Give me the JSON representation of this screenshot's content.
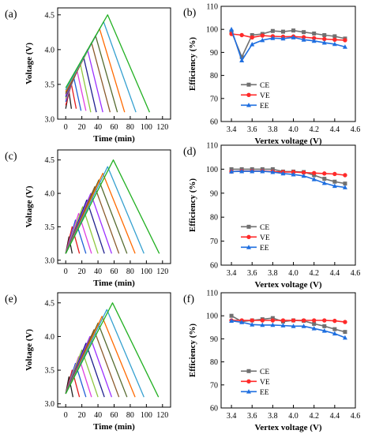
{
  "chart_data": [
    {
      "panel": "(a)",
      "type": "line",
      "xlabel": "Time (min)",
      "ylabel": "Voltage (V)",
      "xlim": [
        -10,
        130
      ],
      "ylim": [
        3.0,
        4.6
      ],
      "xticks": [
        "0",
        "20",
        "40",
        "60",
        "80",
        "100",
        "120"
      ],
      "yticks": [
        "3.0",
        "3.5",
        "4.0",
        "4.5"
      ],
      "series": [
        {
          "color": "#1f1f1f",
          "values": [
            [
              0,
              3.15
            ],
            [
              4,
              3.4
            ],
            [
              7,
              3.15
            ]
          ]
        },
        {
          "color": "#e41a1c",
          "values": [
            [
              0,
              3.2
            ],
            [
              7,
              3.5
            ],
            [
              13,
              3.15
            ]
          ]
        },
        {
          "color": "#1f5fd6",
          "values": [
            [
              0,
              3.25
            ],
            [
              10,
              3.6
            ],
            [
              19,
              3.12
            ]
          ]
        },
        {
          "color": "#e040e0",
          "values": [
            [
              0,
              3.28
            ],
            [
              14,
              3.7
            ],
            [
              25,
              3.12
            ]
          ]
        },
        {
          "color": "#8ec63f",
          "values": [
            [
              0,
              3.3
            ],
            [
              18,
              3.8
            ],
            [
              31,
              3.1
            ]
          ]
        },
        {
          "color": "#1f1f8f",
          "values": [
            [
              0,
              3.32
            ],
            [
              22,
              3.9
            ],
            [
              38,
              3.1
            ]
          ]
        },
        {
          "color": "#9b30ff",
          "values": [
            [
              0,
              3.34
            ],
            [
              27,
              4.0
            ],
            [
              46,
              3.1
            ]
          ]
        },
        {
          "color": "#8b5a2b",
          "values": [
            [
              0,
              3.36
            ],
            [
              32,
              4.1
            ],
            [
              55,
              3.1
            ]
          ]
        },
        {
          "color": "#556b2f",
          "values": [
            [
              0,
              3.38
            ],
            [
              37,
              4.2
            ],
            [
              64,
              3.1
            ]
          ]
        },
        {
          "color": "#ff6a00",
          "values": [
            [
              0,
              3.4
            ],
            [
              42,
              4.3
            ],
            [
              73,
              3.1
            ]
          ]
        },
        {
          "color": "#35a0d0",
          "values": [
            [
              0,
              3.42
            ],
            [
              47,
              4.4
            ],
            [
              87,
              3.1
            ]
          ]
        },
        {
          "color": "#22b022",
          "values": [
            [
              0,
              3.45
            ],
            [
              52,
              4.5
            ],
            [
              104,
              3.1
            ]
          ]
        }
      ]
    },
    {
      "panel": "(b)",
      "type": "line",
      "xlabel": "Vertex voltage (V)",
      "ylabel": "Efficiency (%)",
      "xlim": [
        3.3,
        4.6
      ],
      "ylim": [
        60,
        110
      ],
      "xticks": [
        "3.4",
        "3.6",
        "3.8",
        "4.0",
        "4.2",
        "4.4",
        "4.6"
      ],
      "yticks": [
        "60",
        "70",
        "80",
        "90",
        "100",
        "110"
      ],
      "legend_position": "inside-lower-left",
      "x": [
        3.4,
        3.5,
        3.6,
        3.7,
        3.8,
        3.9,
        4.0,
        4.1,
        4.2,
        4.3,
        4.4,
        4.5
      ],
      "series": [
        {
          "name": "CE",
          "color": "#707070",
          "marker": "square",
          "values": [
            99,
            88,
            97.5,
            98,
            99.3,
            99,
            99.5,
            98.8,
            98.2,
            97.5,
            97,
            96
          ]
        },
        {
          "name": "VE",
          "color": "#ff2a2a",
          "marker": "circle",
          "values": [
            98,
            97.5,
            96.5,
            97.3,
            97,
            96.8,
            96.9,
            96.6,
            96.2,
            95.8,
            95.5,
            95.3
          ]
        },
        {
          "name": "EE",
          "color": "#1f6fe0",
          "marker": "triangle",
          "values": [
            100,
            86.5,
            93.5,
            95.3,
            96.2,
            96,
            96.5,
            95.5,
            95,
            94.2,
            93.6,
            92.4
          ]
        }
      ]
    },
    {
      "panel": "(c)",
      "type": "line",
      "xlabel": "Time (min)",
      "ylabel": "Voltage (V)",
      "xlim": [
        -10,
        130
      ],
      "ylim": [
        2.95,
        4.65
      ],
      "xticks": [
        "0",
        "20",
        "40",
        "60",
        "80",
        "100",
        "120"
      ],
      "yticks": [
        "3.0",
        "3.5",
        "4.0",
        "4.5"
      ],
      "series": [
        {
          "color": "#1f1f1f",
          "values": [
            [
              0,
              3.1
            ],
            [
              4,
              3.35
            ],
            [
              8,
              3.1
            ]
          ]
        },
        {
          "color": "#e41a1c",
          "values": [
            [
              0,
              3.1
            ],
            [
              8,
              3.5
            ],
            [
              17,
              3.1
            ]
          ]
        },
        {
          "color": "#1f5fd6",
          "values": [
            [
              0,
              3.1
            ],
            [
              12,
              3.6
            ],
            [
              25,
              3.1
            ]
          ]
        },
        {
          "color": "#e040e0",
          "values": [
            [
              0,
              3.1
            ],
            [
              16,
              3.7
            ],
            [
              32,
              3.1
            ]
          ]
        },
        {
          "color": "#8ec63f",
          "values": [
            [
              0,
              3.1
            ],
            [
              21,
              3.8
            ],
            [
              40,
              3.1
            ]
          ]
        },
        {
          "color": "#1f1f8f",
          "values": [
            [
              0,
              3.1
            ],
            [
              26,
              3.9
            ],
            [
              48,
              3.1
            ]
          ]
        },
        {
          "color": "#9b30ff",
          "values": [
            [
              0,
              3.1
            ],
            [
              31,
              4.0
            ],
            [
              57,
              3.1
            ]
          ]
        },
        {
          "color": "#8b5a2b",
          "values": [
            [
              0,
              3.1
            ],
            [
              36,
              4.1
            ],
            [
              66,
              3.1
            ]
          ]
        },
        {
          "color": "#556b2f",
          "values": [
            [
              0,
              3.1
            ],
            [
              41,
              4.2
            ],
            [
              76,
              3.1
            ]
          ]
        },
        {
          "color": "#ff6a00",
          "values": [
            [
              0,
              3.1
            ],
            [
              46,
              4.3
            ],
            [
              86,
              3.1
            ]
          ]
        },
        {
          "color": "#35a0d0",
          "values": [
            [
              0,
              3.1
            ],
            [
              52,
              4.4
            ],
            [
              97,
              3.1
            ]
          ]
        },
        {
          "color": "#22b022",
          "values": [
            [
              0,
              3.1
            ],
            [
              59,
              4.5
            ],
            [
              116,
              3.1
            ]
          ]
        }
      ]
    },
    {
      "panel": "(d)",
      "type": "line",
      "xlabel": "Vertex voltage (V)",
      "ylabel": "Efficiency (%)",
      "xlim": [
        3.3,
        4.6
      ],
      "ylim": [
        60,
        110
      ],
      "xticks": [
        "3.4",
        "3.6",
        "3.8",
        "4.0",
        "4.2",
        "4.4",
        "4.6"
      ],
      "yticks": [
        "60",
        "70",
        "80",
        "90",
        "100",
        "110"
      ],
      "legend_position": "inside-lower-left",
      "x": [
        3.4,
        3.5,
        3.6,
        3.7,
        3.8,
        3.9,
        4.0,
        4.1,
        4.2,
        4.3,
        4.4,
        4.5
      ],
      "series": [
        {
          "name": "CE",
          "color": "#707070",
          "marker": "square",
          "values": [
            100,
            100,
            100,
            100,
            100,
            99,
            99,
            98.8,
            97.5,
            96,
            94.8,
            94
          ]
        },
        {
          "name": "VE",
          "color": "#ff2a2a",
          "marker": "circle",
          "values": [
            99,
            99.2,
            99.2,
            99.2,
            99,
            98.8,
            98.8,
            98.6,
            98.4,
            98.2,
            98,
            97.5
          ]
        },
        {
          "name": "EE",
          "color": "#1f6fe0",
          "marker": "triangle",
          "values": [
            99,
            99.1,
            99.1,
            99.1,
            98.8,
            98.2,
            97.8,
            97.2,
            95.8,
            94.2,
            93,
            92.4
          ]
        }
      ]
    },
    {
      "panel": "(e)",
      "type": "line",
      "xlabel": "Time (min)",
      "ylabel": "Voltage (V)",
      "xlim": [
        -10,
        130
      ],
      "ylim": [
        2.95,
        4.65
      ],
      "xticks": [
        "0",
        "20",
        "40",
        "60",
        "80",
        "100",
        "120"
      ],
      "yticks": [
        "3.0",
        "3.5",
        "4.0",
        "4.5"
      ],
      "series": [
        {
          "color": "#1f1f1f",
          "values": [
            [
              0,
              3.15
            ],
            [
              4,
              3.4
            ],
            [
              9,
              3.1
            ]
          ]
        },
        {
          "color": "#e41a1c",
          "values": [
            [
              0,
              3.15
            ],
            [
              8,
              3.5
            ],
            [
              17,
              3.1
            ]
          ]
        },
        {
          "color": "#1f5fd6",
          "values": [
            [
              0,
              3.15
            ],
            [
              12,
              3.6
            ],
            [
              25,
              3.1
            ]
          ]
        },
        {
          "color": "#e040e0",
          "values": [
            [
              0,
              3.15
            ],
            [
              16,
              3.7
            ],
            [
              32,
              3.1
            ]
          ]
        },
        {
          "color": "#8ec63f",
          "values": [
            [
              0,
              3.15
            ],
            [
              20,
              3.8
            ],
            [
              40,
              3.1
            ]
          ]
        },
        {
          "color": "#1f1f8f",
          "values": [
            [
              0,
              3.15
            ],
            [
              25,
              3.9
            ],
            [
              48,
              3.1
            ]
          ]
        },
        {
          "color": "#9b30ff",
          "values": [
            [
              0,
              3.15
            ],
            [
              30,
              4.0
            ],
            [
              57,
              3.1
            ]
          ]
        },
        {
          "color": "#8b5a2b",
          "values": [
            [
              0,
              3.15
            ],
            [
              35,
              4.1
            ],
            [
              66,
              3.1
            ]
          ]
        },
        {
          "color": "#556b2f",
          "values": [
            [
              0,
              3.15
            ],
            [
              40,
              4.2
            ],
            [
              76,
              3.1
            ]
          ]
        },
        {
          "color": "#ff6a00",
          "values": [
            [
              0,
              3.15
            ],
            [
              45,
              4.3
            ],
            [
              86,
              3.1
            ]
          ]
        },
        {
          "color": "#35a0d0",
          "values": [
            [
              0,
              3.15
            ],
            [
              51,
              4.4
            ],
            [
              97,
              3.1
            ]
          ]
        },
        {
          "color": "#22b022",
          "values": [
            [
              0,
              3.15
            ],
            [
              58,
              4.5
            ],
            [
              115,
              3.1
            ]
          ]
        }
      ]
    },
    {
      "panel": "(f)",
      "type": "line",
      "xlabel": "Vertex voltage (V)",
      "ylabel": "Efficiency (%)",
      "xlim": [
        3.3,
        4.6
      ],
      "ylim": [
        60,
        110
      ],
      "xticks": [
        "3.4",
        "3.6",
        "3.8",
        "4.0",
        "4.2",
        "4.4",
        "4.6"
      ],
      "yticks": [
        "60",
        "70",
        "80",
        "90",
        "100",
        "110"
      ],
      "legend_position": "inside-lower-left",
      "x": [
        3.4,
        3.5,
        3.6,
        3.7,
        3.8,
        3.9,
        4.0,
        4.1,
        4.2,
        4.3,
        4.4,
        4.5
      ],
      "series": [
        {
          "name": "CE",
          "color": "#707070",
          "marker": "square",
          "values": [
            100,
            97.5,
            98,
            98.5,
            99,
            97.5,
            98,
            97.8,
            96.5,
            95.5,
            94.2,
            93
          ]
        },
        {
          "name": "VE",
          "color": "#ff2a2a",
          "marker": "circle",
          "values": [
            98,
            98,
            98,
            98,
            98,
            98,
            98,
            98,
            98,
            98,
            97.8,
            97.3
          ]
        },
        {
          "name": "EE",
          "color": "#1f6fe0",
          "marker": "triangle",
          "values": [
            97.8,
            97.2,
            96.2,
            96,
            96,
            95.8,
            95.5,
            95.5,
            94.5,
            93.5,
            92.3,
            90.5
          ]
        }
      ]
    }
  ]
}
